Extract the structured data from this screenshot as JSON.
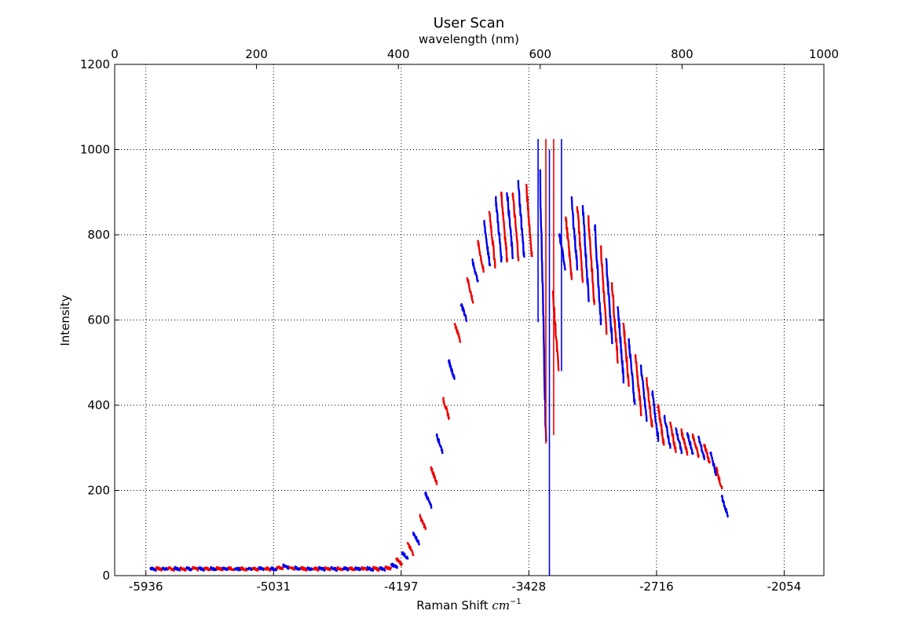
{
  "chart_data": {
    "type": "line",
    "title": "User Scan",
    "top_xlabel": "wavelength (nm)",
    "xlabel_text": "Raman Shift ",
    "xlabel_unit": "cm",
    "xlabel_exp": "−1",
    "ylabel": "Intensity",
    "grid": true,
    "legend": "none",
    "top_axis": {
      "xlim": [
        0,
        1000
      ],
      "ticks": [
        0,
        200,
        400,
        600,
        800,
        1000
      ],
      "tick_labels": [
        "0",
        "200",
        "400",
        "600",
        "800",
        "1000"
      ]
    },
    "bottom_axis": {
      "tick_labels": [
        "-5936",
        "-5031",
        "-4197",
        "-3428",
        "-2716",
        "-2054"
      ],
      "tick_positions_nm": [
        44,
        224,
        404,
        584,
        764,
        944
      ]
    },
    "y_axis": {
      "ylim": [
        0,
        1200
      ],
      "ticks": [
        0,
        200,
        400,
        600,
        800,
        1000,
        1200
      ],
      "tick_labels": [
        "0",
        "200",
        "400",
        "600",
        "800",
        "1000",
        "1200"
      ]
    },
    "series_colors": [
      "#0000ee",
      "#ee0000"
    ],
    "segment_width_nm": 8.5,
    "segments": [
      {
        "x": 50,
        "s": 18,
        "e": 14
      },
      {
        "x": 58.5,
        "s": 18,
        "e": 14
      },
      {
        "x": 67,
        "s": 18,
        "e": 14
      },
      {
        "x": 75.5,
        "s": 18,
        "e": 14
      },
      {
        "x": 84,
        "s": 18,
        "e": 14
      },
      {
        "x": 92.5,
        "s": 18,
        "e": 14
      },
      {
        "x": 101,
        "s": 18,
        "e": 14
      },
      {
        "x": 109.5,
        "s": 18,
        "e": 14
      },
      {
        "x": 118,
        "s": 18,
        "e": 14
      },
      {
        "x": 126.5,
        "s": 18,
        "e": 14
      },
      {
        "x": 135,
        "s": 18,
        "e": 14
      },
      {
        "x": 143.5,
        "s": 18,
        "e": 14
      },
      {
        "x": 152,
        "s": 18,
        "e": 14
      },
      {
        "x": 160.5,
        "s": 18,
        "e": 14
      },
      {
        "x": 169,
        "s": 18,
        "e": 14
      },
      {
        "x": 177.5,
        "s": 18,
        "e": 14
      },
      {
        "x": 186,
        "s": 18,
        "e": 14
      },
      {
        "x": 194.5,
        "s": 18,
        "e": 14
      },
      {
        "x": 203,
        "s": 18,
        "e": 14
      },
      {
        "x": 211.5,
        "s": 18,
        "e": 14
      },
      {
        "x": 220,
        "s": 18,
        "e": 14
      },
      {
        "x": 228.5,
        "s": 20,
        "e": 16
      },
      {
        "x": 237,
        "s": 24,
        "e": 18
      },
      {
        "x": 245.5,
        "s": 22,
        "e": 16
      },
      {
        "x": 254,
        "s": 19,
        "e": 14
      },
      {
        "x": 262.5,
        "s": 18,
        "e": 14
      },
      {
        "x": 271,
        "s": 18,
        "e": 14
      },
      {
        "x": 279.5,
        "s": 18,
        "e": 14
      },
      {
        "x": 288,
        "s": 18,
        "e": 14
      },
      {
        "x": 296.5,
        "s": 18,
        "e": 14
      },
      {
        "x": 305,
        "s": 18,
        "e": 14
      },
      {
        "x": 313.5,
        "s": 18,
        "e": 14
      },
      {
        "x": 322,
        "s": 18,
        "e": 14
      },
      {
        "x": 330.5,
        "s": 18,
        "e": 14
      },
      {
        "x": 339,
        "s": 18,
        "e": 14
      },
      {
        "x": 347.5,
        "s": 18,
        "e": 14
      },
      {
        "x": 356,
        "s": 18,
        "e": 14
      },
      {
        "x": 364.5,
        "s": 18,
        "e": 14
      },
      {
        "x": 373,
        "s": 18,
        "e": 14
      },
      {
        "x": 381.5,
        "s": 20,
        "e": 16
      },
      {
        "x": 390,
        "s": 26,
        "e": 20
      },
      {
        "x": 397,
        "s": 40,
        "e": 25
      },
      {
        "x": 405,
        "s": 55,
        "e": 40
      },
      {
        "x": 413,
        "s": 75,
        "e": 50
      },
      {
        "x": 421,
        "s": 100,
        "e": 75
      },
      {
        "x": 430,
        "s": 140,
        "e": 110
      },
      {
        "x": 438,
        "s": 195,
        "e": 160
      },
      {
        "x": 446,
        "s": 255,
        "e": 215
      },
      {
        "x": 454,
        "s": 330,
        "e": 290
      },
      {
        "x": 463,
        "s": 415,
        "e": 370
      },
      {
        "x": 471,
        "s": 505,
        "e": 460
      },
      {
        "x": 479,
        "s": 595,
        "e": 550
      },
      {
        "x": 488,
        "s": 640,
        "e": 600
      },
      {
        "x": 497,
        "s": 700,
        "e": 640
      },
      {
        "x": 504,
        "s": 740,
        "e": 690
      },
      {
        "x": 512,
        "s": 785,
        "e": 710
      },
      {
        "x": 521,
        "s": 830,
        "e": 720
      },
      {
        "x": 528,
        "s": 860,
        "e": 730
      },
      {
        "x": 537,
        "s": 890,
        "e": 740
      },
      {
        "x": 545,
        "s": 900,
        "e": 740
      },
      {
        "x": 553,
        "s": 905,
        "e": 745
      },
      {
        "x": 561,
        "s": 900,
        "e": 745
      },
      {
        "x": 569,
        "s": 920,
        "e": 745
      },
      {
        "x": 580,
        "s": 920,
        "e": 745
      },
      {
        "x": 600,
        "s": 925,
        "e": 300
      },
      {
        "x": 618,
        "s": 660,
        "e": 470
      },
      {
        "x": 627,
        "s": 800,
        "e": 720
      },
      {
        "x": 636,
        "s": 840,
        "e": 700
      },
      {
        "x": 644,
        "s": 885,
        "e": 720
      },
      {
        "x": 652,
        "s": 875,
        "e": 680
      },
      {
        "x": 660,
        "s": 860,
        "e": 650
      },
      {
        "x": 668,
        "s": 840,
        "e": 630
      },
      {
        "x": 677,
        "s": 820,
        "e": 600
      },
      {
        "x": 685,
        "s": 780,
        "e": 570
      },
      {
        "x": 693,
        "s": 740,
        "e": 550
      },
      {
        "x": 701,
        "s": 690,
        "e": 500
      },
      {
        "x": 709,
        "s": 640,
        "e": 460
      },
      {
        "x": 717,
        "s": 600,
        "e": 440
      },
      {
        "x": 725,
        "s": 550,
        "e": 400
      },
      {
        "x": 734,
        "s": 520,
        "e": 380
      },
      {
        "x": 742,
        "s": 490,
        "e": 360
      },
      {
        "x": 750,
        "s": 460,
        "e": 340
      },
      {
        "x": 758,
        "s": 430,
        "e": 320
      },
      {
        "x": 766,
        "s": 400,
        "e": 305
      },
      {
        "x": 775,
        "s": 375,
        "e": 300
      },
      {
        "x": 783,
        "s": 360,
        "e": 290
      },
      {
        "x": 791,
        "s": 345,
        "e": 290
      },
      {
        "x": 799,
        "s": 340,
        "e": 285
      },
      {
        "x": 807,
        "s": 335,
        "e": 285
      },
      {
        "x": 815,
        "s": 330,
        "e": 280
      },
      {
        "x": 823,
        "s": 325,
        "e": 275
      },
      {
        "x": 831,
        "s": 310,
        "e": 260
      },
      {
        "x": 840,
        "s": 290,
        "e": 235
      },
      {
        "x": 848,
        "s": 255,
        "e": 200
      },
      {
        "x": 856,
        "s": 185,
        "e": 140
      }
    ],
    "spikes": [
      {
        "x": 597,
        "y0": 595,
        "y1": 1025,
        "color": "#0000ee"
      },
      {
        "x": 608,
        "y0": 310,
        "y1": 1025,
        "color": "#ee0000"
      },
      {
        "x": 613,
        "y0": 0,
        "y1": 1000,
        "color": "#0000ee"
      },
      {
        "x": 619,
        "y0": 330,
        "y1": 1025,
        "color": "#ee0000"
      },
      {
        "x": 630,
        "y0": 480,
        "y1": 1025,
        "color": "#0000ee"
      }
    ]
  }
}
